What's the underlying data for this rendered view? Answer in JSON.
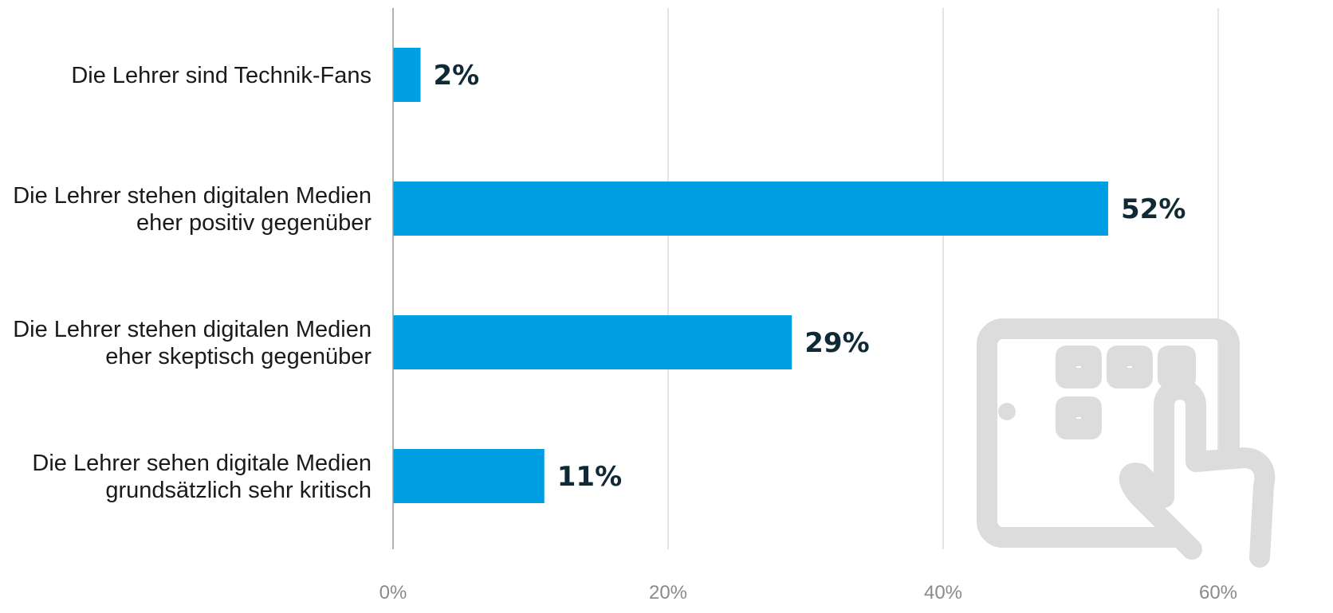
{
  "chart_data": {
    "type": "bar",
    "orientation": "horizontal",
    "categories": [
      [
        "Die Lehrer sind Technik-Fans"
      ],
      [
        "Die Lehrer stehen digitalen Medien",
        "eher positiv gegenüber"
      ],
      [
        "Die Lehrer stehen digitalen Medien",
        "eher skeptisch gegenüber"
      ],
      [
        "Die Lehrer sehen digitale Medien",
        "grundsätzlich sehr kritisch"
      ]
    ],
    "values": [
      2,
      52,
      29,
      11
    ],
    "value_labels": [
      "2%",
      "52%",
      "29%",
      "11%"
    ],
    "xlim": [
      0,
      60
    ],
    "x_ticks": [
      0,
      20,
      40,
      60
    ],
    "x_tick_labels": [
      "0%",
      "20%",
      "40%",
      "60%"
    ],
    "grid": true,
    "colors": {
      "bar": "#009fe3",
      "value_label": "#0f2a36",
      "watermark": "#dcdcdc"
    },
    "watermark_icon": "tablet-touch-icon"
  }
}
